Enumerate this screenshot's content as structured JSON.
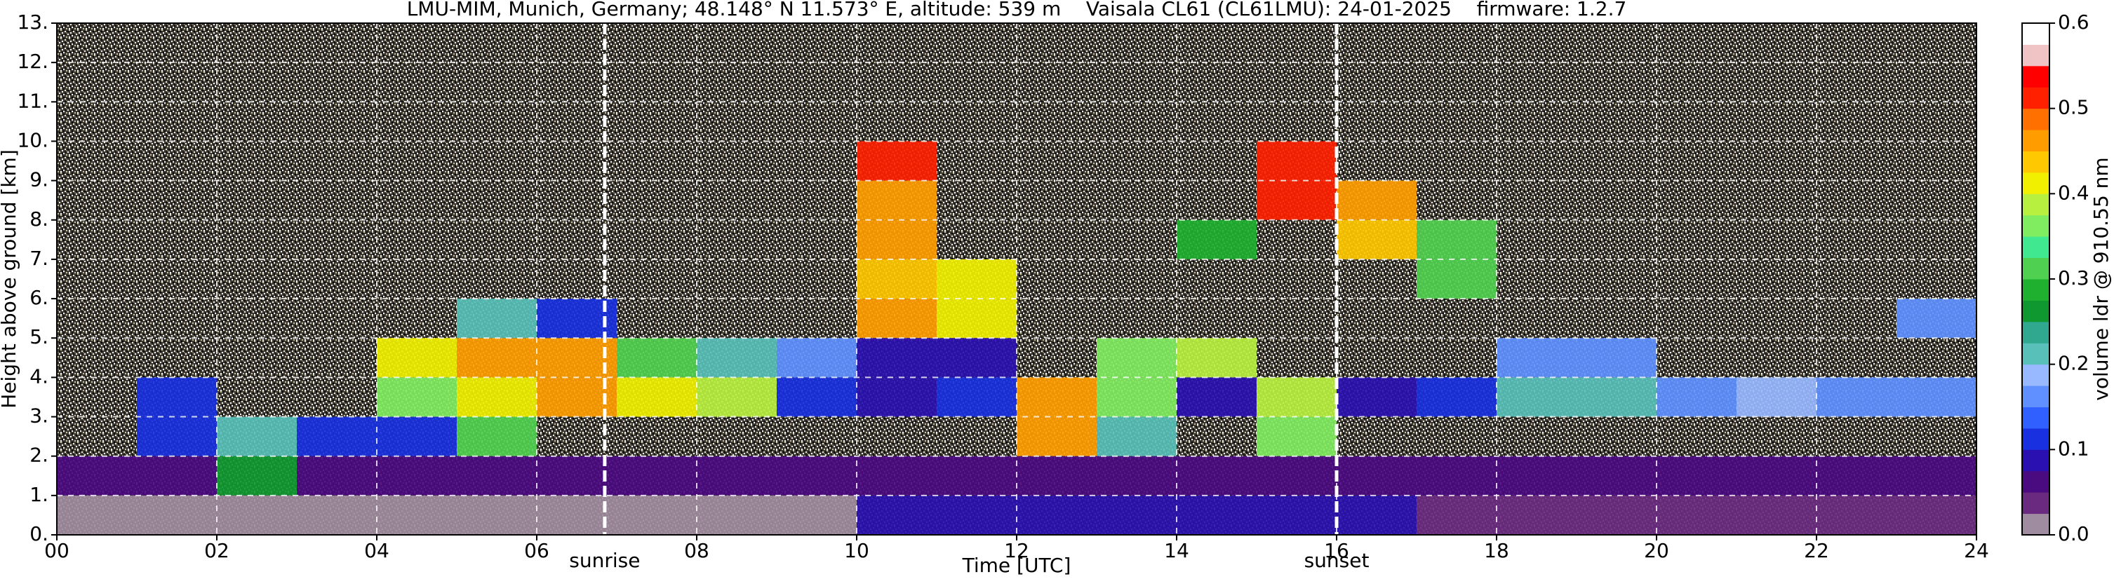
{
  "chart_data": {
    "type": "heatmap",
    "title": "LMU-MIM, Munich, Germany; 48.148° N 11.573° E, altitude: 539 m    Vaisala CL61 (CL61LMU): 24-01-2025    firmware: 1.2.7",
    "xlabel": "Time [UTC]",
    "ylabel": "Height above ground [km]",
    "xlim": [
      0,
      24
    ],
    "ylim": [
      0,
      13
    ],
    "xticks": [
      {
        "value": 0,
        "label": "00"
      },
      {
        "value": 2,
        "label": "02"
      },
      {
        "value": 4,
        "label": "04"
      },
      {
        "value": 6,
        "label": "06"
      },
      {
        "value": 8,
        "label": "08"
      },
      10,
      12,
      14,
      16,
      18,
      20,
      22,
      24
    ],
    "yticks": [
      {
        "value": 0,
        "label": "0."
      },
      {
        "value": 1,
        "label": "1."
      },
      {
        "value": 2,
        "label": "2."
      },
      {
        "value": 3,
        "label": "3."
      },
      {
        "value": 4,
        "label": "4."
      },
      {
        "value": 5,
        "label": "5."
      },
      {
        "value": 6,
        "label": "6."
      },
      {
        "value": 7,
        "label": "7."
      },
      {
        "value": 8,
        "label": "8."
      },
      {
        "value": 9,
        "label": "9."
      },
      {
        "value": 10,
        "label": "10."
      },
      {
        "value": 11,
        "label": "11."
      },
      {
        "value": 12,
        "label": "12."
      },
      {
        "value": 13,
        "label": "13."
      }
    ],
    "grid": true,
    "x": [
      0.5,
      1.5,
      2.5,
      3.5,
      4.5,
      5.5,
      6.5,
      7.5,
      8.5,
      9.5,
      10.5,
      11.5,
      12.5,
      13.5,
      14.5,
      15.5,
      16.5,
      17.5,
      18.5,
      19.5,
      20.5,
      21.5,
      22.5,
      23.5
    ],
    "y": [
      0.5,
      1.5,
      2.5,
      3.5,
      4.5,
      5.5,
      6.5,
      7.5,
      8.5,
      9.5,
      10.5,
      11.5,
      12.5
    ],
    "values": [
      [
        0.02,
        0.02,
        0.02,
        0.02,
        0.02,
        0.02,
        0.02,
        0.02,
        0.02,
        0.02,
        0.08,
        0.08,
        0.08,
        0.08,
        0.08,
        0.08,
        0.08,
        0.03,
        0.03,
        0.03,
        0.03,
        0.03,
        0.03,
        0.03
      ],
      [
        0.07,
        0.07,
        0.25,
        0.07,
        0.07,
        0.07,
        0.07,
        0.07,
        0.07,
        0.07,
        0.07,
        0.07,
        0.07,
        0.07,
        0.07,
        0.07,
        0.07,
        0.07,
        0.07,
        0.07,
        0.07,
        0.07,
        0.07,
        0.07
      ],
      [
        null,
        0.12,
        0.2,
        0.1,
        0.1,
        0.3,
        null,
        null,
        null,
        null,
        null,
        null,
        0.45,
        0.2,
        null,
        0.35,
        null,
        null,
        null,
        null,
        null,
        null,
        null,
        null
      ],
      [
        null,
        0.1,
        null,
        null,
        0.35,
        0.4,
        0.45,
        0.42,
        0.38,
        0.1,
        0.08,
        0.1,
        0.45,
        0.35,
        0.08,
        0.38,
        0.08,
        0.1,
        0.2,
        0.2,
        0.15,
        0.18,
        0.15,
        0.15
      ],
      [
        null,
        null,
        null,
        null,
        0.4,
        0.47,
        0.47,
        0.3,
        0.2,
        0.15,
        0.08,
        0.08,
        null,
        0.35,
        0.38,
        null,
        null,
        null,
        0.15,
        0.15,
        null,
        null,
        null,
        null
      ],
      [
        null,
        null,
        null,
        null,
        null,
        0.2,
        0.1,
        null,
        null,
        null,
        0.45,
        0.4,
        null,
        null,
        null,
        null,
        null,
        null,
        null,
        null,
        null,
        null,
        null,
        0.15
      ],
      [
        null,
        null,
        null,
        null,
        null,
        null,
        null,
        null,
        null,
        null,
        0.43,
        0.4,
        null,
        null,
        null,
        null,
        null,
        0.32,
        null,
        null,
        null,
        null,
        null,
        null
      ],
      [
        null,
        null,
        null,
        null,
        null,
        null,
        null,
        null,
        null,
        null,
        0.45,
        null,
        null,
        null,
        0.28,
        null,
        0.43,
        0.32,
        null,
        null,
        null,
        null,
        null,
        null
      ],
      [
        null,
        null,
        null,
        null,
        null,
        null,
        null,
        null,
        null,
        null,
        0.45,
        null,
        null,
        null,
        null,
        0.5,
        0.45,
        null,
        null,
        null,
        null,
        null,
        null,
        null
      ],
      [
        null,
        null,
        null,
        null,
        null,
        null,
        null,
        null,
        null,
        null,
        0.52,
        null,
        null,
        null,
        null,
        0.52,
        null,
        null,
        null,
        null,
        null,
        null,
        null,
        null
      ],
      [
        null,
        null,
        null,
        null,
        null,
        null,
        null,
        null,
        null,
        null,
        null,
        null,
        null,
        null,
        null,
        null,
        null,
        null,
        null,
        null,
        null,
        null,
        null,
        null
      ],
      [
        null,
        null,
        null,
        null,
        null,
        null,
        null,
        null,
        null,
        null,
        null,
        null,
        null,
        null,
        null,
        null,
        null,
        null,
        null,
        null,
        null,
        null,
        null,
        null
      ],
      [
        null,
        null,
        null,
        null,
        null,
        null,
        null,
        null,
        null,
        null,
        null,
        null,
        null,
        null,
        null,
        null,
        null,
        null,
        null,
        null,
        null,
        null,
        null,
        null
      ]
    ],
    "annotations": [
      {
        "text": "sunrise",
        "x": 6.85
      },
      {
        "text": "sunset",
        "x": 16.0
      }
    ],
    "colorbar": {
      "label": "volume ldr @ 910.55 nm",
      "lim": [
        0,
        0.6
      ],
      "ticks": [
        {
          "value": 0,
          "label": "0.0"
        },
        0.1,
        0.2,
        0.3,
        0.4,
        0.5,
        0.6
      ],
      "colors": [
        "#a08ca0",
        "#6a2a80",
        "#4a0a80",
        "#2a10b0",
        "#1830e0",
        "#3060ff",
        "#6090ff",
        "#98b8ff",
        "#58c0b8",
        "#30a890",
        "#109830",
        "#20b030",
        "#50d050",
        "#40e890",
        "#80ec60",
        "#b8f040",
        "#f0f000",
        "#ffc800",
        "#ff9c00",
        "#ff7000",
        "#ff2000",
        "#ff0000",
        "#f0c4c4",
        "#ffffff"
      ]
    }
  }
}
